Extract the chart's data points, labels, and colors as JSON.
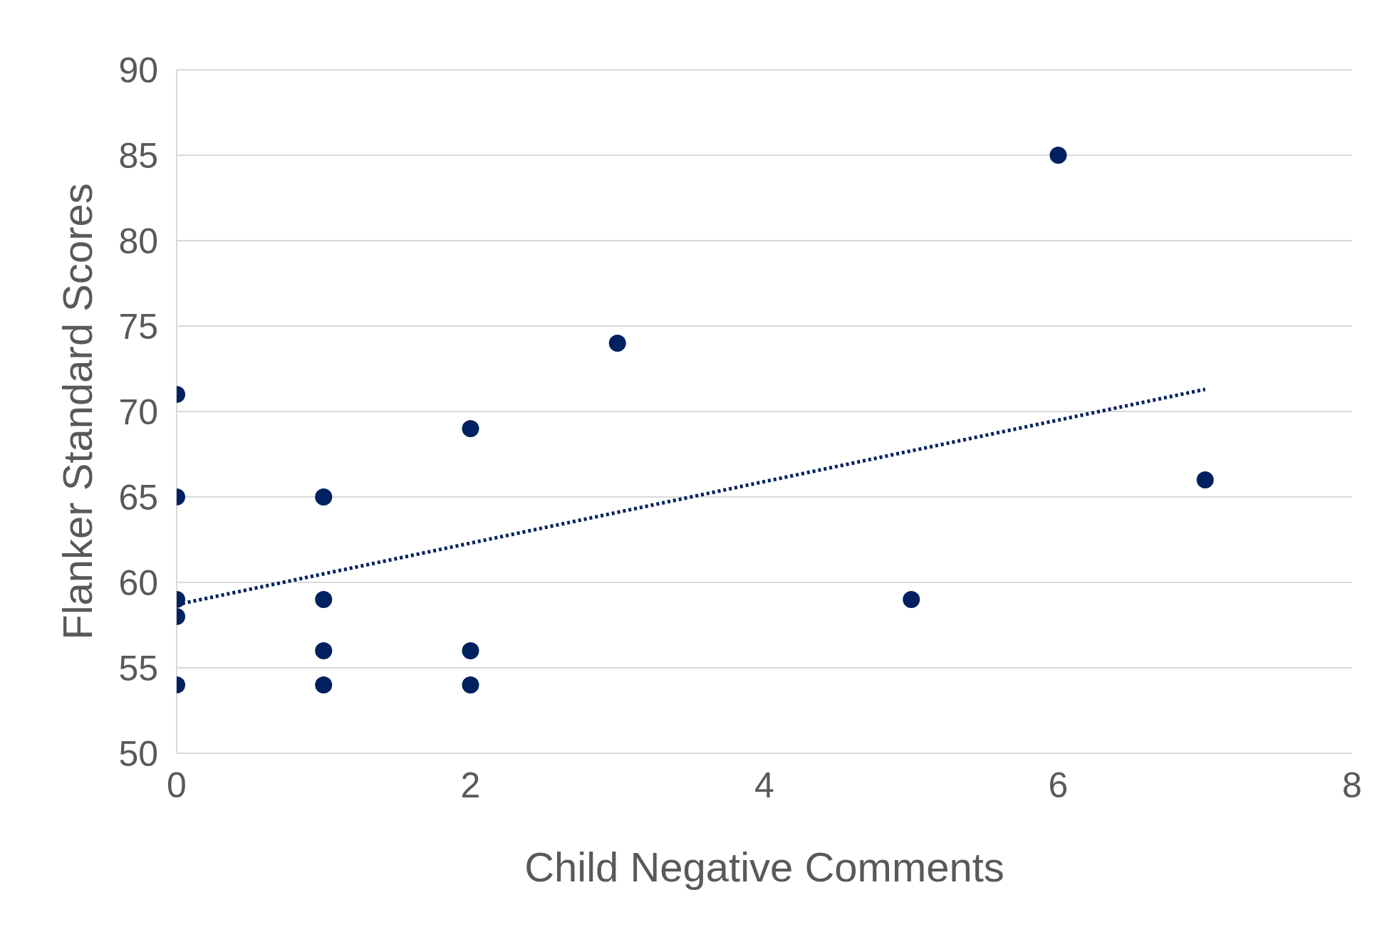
{
  "chart_data": {
    "type": "scatter",
    "xlabel": "Child Negative Comments",
    "ylabel": "Flanker Standard Scores",
    "x": [
      0,
      0,
      0,
      0,
      0,
      1,
      1,
      1,
      1,
      2,
      2,
      2,
      3,
      5,
      6,
      7
    ],
    "series": [
      {
        "type": "scatter",
        "color": "#002060",
        "marker": "circle",
        "values": [
          71,
          65,
          59,
          58,
          54,
          65,
          59,
          56,
          54,
          69,
          56,
          54,
          74,
          59,
          85,
          66
        ]
      },
      {
        "type": "line",
        "color": "#002060",
        "line_style": "dotted",
        "marker": "none",
        "x": [
          0,
          7
        ],
        "values": [
          58.7,
          71.3
        ]
      }
    ],
    "xlim": [
      0,
      8
    ],
    "xticks": [
      0,
      2,
      4,
      6,
      8
    ],
    "ylim": [
      50,
      90
    ],
    "yticks": [
      50,
      55,
      60,
      65,
      70,
      75,
      80,
      85,
      90
    ],
    "grid": "y",
    "legend": false
  }
}
